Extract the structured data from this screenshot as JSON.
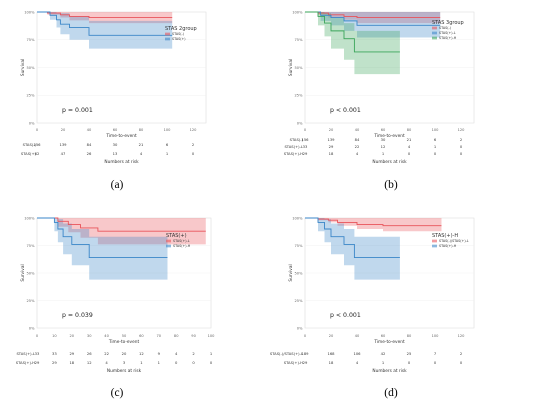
{
  "chart_data": [
    {
      "type": "line",
      "subtype": "kaplan-meier",
      "caption": "(a)",
      "p_value": "p = 0.001",
      "xlabel": "Time-to-event",
      "ylabel": "Survival",
      "risk_label": "Numbers at risk",
      "legend_title": "STAS 2group",
      "xlim": [
        0,
        130
      ],
      "ylim": [
        0,
        1
      ],
      "x_ticks": [
        0,
        20,
        40,
        60,
        80,
        100,
        120
      ],
      "y_ticks": [
        0,
        0.25,
        0.5,
        0.75,
        1
      ],
      "y_tick_labels": [
        "0%",
        "25%",
        "50%",
        "75%",
        "100%"
      ],
      "series": [
        {
          "name": "STAS(-)",
          "color": "#e8535a",
          "steps": [
            [
              0,
              1
            ],
            [
              8,
              0.99
            ],
            [
              18,
              0.975
            ],
            [
              25,
              0.96
            ],
            [
              40,
              0.95
            ],
            [
              104,
              0.95
            ]
          ],
          "ci_low": [
            [
              0,
              1
            ],
            [
              8,
              0.975
            ],
            [
              18,
              0.95
            ],
            [
              25,
              0.925
            ],
            [
              40,
              0.9
            ],
            [
              104,
              0.9
            ]
          ],
          "ci_high": [
            [
              0,
              1
            ],
            [
              104,
              1
            ]
          ]
        },
        {
          "name": "STAS(+)",
          "color": "#3a86c8",
          "steps": [
            [
              0,
              1
            ],
            [
              10,
              0.97
            ],
            [
              15,
              0.93
            ],
            [
              18,
              0.89
            ],
            [
              25,
              0.86
            ],
            [
              40,
              0.79
            ],
            [
              104,
              0.79
            ]
          ],
          "ci_low": [
            [
              0,
              1
            ],
            [
              10,
              0.93
            ],
            [
              15,
              0.86
            ],
            [
              18,
              0.8
            ],
            [
              25,
              0.75
            ],
            [
              40,
              0.67
            ],
            [
              104,
              0.67
            ]
          ],
          "ci_high": [
            [
              0,
              1
            ],
            [
              15,
              0.99
            ],
            [
              25,
              0.96
            ],
            [
              40,
              0.92
            ],
            [
              104,
              0.92
            ]
          ]
        }
      ],
      "risk_table": {
        "times": [
          0,
          20,
          40,
          60,
          80,
          100,
          120
        ],
        "rows": [
          {
            "label": "STAS(-)",
            "values": [
              "156",
              "139",
              "84",
              "30",
              "21",
              "6",
              "2"
            ]
          },
          {
            "label": "STAS(+)",
            "values": [
              "62",
              "47",
              "26",
              "13",
              "4",
              "1",
              "0"
            ]
          }
        ]
      }
    },
    {
      "type": "line",
      "subtype": "kaplan-meier",
      "caption": "(b)",
      "p_value": "p < 0.001",
      "xlabel": "Time-to-event",
      "ylabel": "Survival",
      "risk_label": "Numbers at risk",
      "legend_title": "STAS 3group",
      "xlim": [
        0,
        130
      ],
      "ylim": [
        0,
        1
      ],
      "x_ticks": [
        0,
        20,
        40,
        60,
        80,
        100,
        120
      ],
      "y_ticks": [
        0,
        0.25,
        0.5,
        0.75,
        1
      ],
      "y_tick_labels": [
        "0%",
        "25%",
        "50%",
        "75%",
        "100%"
      ],
      "series": [
        {
          "name": "STAS(-)",
          "color": "#e8535a",
          "steps": [
            [
              0,
              1
            ],
            [
              10,
              0.99
            ],
            [
              18,
              0.975
            ],
            [
              30,
              0.96
            ],
            [
              40,
              0.95
            ],
            [
              104,
              0.95
            ]
          ],
          "ci_low": [
            [
              0,
              1
            ],
            [
              10,
              0.975
            ],
            [
              18,
              0.95
            ],
            [
              30,
              0.93
            ],
            [
              40,
              0.9
            ],
            [
              104,
              0.9
            ]
          ],
          "ci_high": [
            [
              0,
              1
            ],
            [
              104,
              1
            ]
          ]
        },
        {
          "name": "STAS(+)-L",
          "color": "#3a86c8",
          "steps": [
            [
              0,
              1
            ],
            [
              12,
              0.97
            ],
            [
              20,
              0.95
            ],
            [
              30,
              0.92
            ],
            [
              40,
              0.88
            ],
            [
              104,
              0.88
            ]
          ],
          "ci_low": [
            [
              0,
              1
            ],
            [
              12,
              0.92
            ],
            [
              20,
              0.88
            ],
            [
              30,
              0.83
            ],
            [
              40,
              0.77
            ],
            [
              104,
              0.77
            ]
          ],
          "ci_high": [
            [
              0,
              1
            ],
            [
              104,
              1
            ]
          ]
        },
        {
          "name": "STAS(+)-H",
          "color": "#3aa55a",
          "steps": [
            [
              0,
              1
            ],
            [
              10,
              0.96
            ],
            [
              15,
              0.9
            ],
            [
              20,
              0.83
            ],
            [
              30,
              0.76
            ],
            [
              38,
              0.64
            ],
            [
              73,
              0.64
            ]
          ],
          "ci_low": [
            [
              0,
              1
            ],
            [
              10,
              0.88
            ],
            [
              15,
              0.78
            ],
            [
              20,
              0.67
            ],
            [
              30,
              0.57
            ],
            [
              38,
              0.44
            ],
            [
              73,
              0.44
            ]
          ],
          "ci_high": [
            [
              0,
              1
            ],
            [
              15,
              0.99
            ],
            [
              20,
              0.95
            ],
            [
              30,
              0.9
            ],
            [
              38,
              0.83
            ],
            [
              73,
              0.83
            ]
          ]
        }
      ],
      "risk_table": {
        "times": [
          0,
          20,
          40,
          60,
          80,
          100,
          120
        ],
        "rows": [
          {
            "label": "STAS(-)",
            "values": [
              "156",
              "139",
              "84",
              "30",
              "21",
              "6",
              "2"
            ]
          },
          {
            "label": "STAS(+)-L",
            "values": [
              "33",
              "29",
              "22",
              "12",
              "4",
              "1",
              "0"
            ]
          },
          {
            "label": "STAS(+)-H",
            "values": [
              "29",
              "18",
              "4",
              "1",
              "0",
              "0",
              "0"
            ]
          }
        ]
      }
    },
    {
      "type": "line",
      "subtype": "kaplan-meier",
      "caption": "(c)",
      "p_value": "p = 0.039",
      "xlabel": "Time-to-event",
      "ylabel": "Survival",
      "risk_label": "Numbers at risk",
      "legend_title": "STAS(+)",
      "xlim": [
        0,
        100
      ],
      "ylim": [
        0,
        1
      ],
      "x_ticks": [
        0,
        10,
        20,
        30,
        40,
        50,
        60,
        70,
        80,
        90,
        100
      ],
      "y_ticks": [
        0,
        0.25,
        0.5,
        0.75,
        1
      ],
      "y_tick_labels": [
        "0%",
        "25%",
        "50%",
        "75%",
        "100%"
      ],
      "series": [
        {
          "name": "STAS(+)-L",
          "color": "#e8535a",
          "steps": [
            [
              0,
              1
            ],
            [
              12,
              0.97
            ],
            [
              18,
              0.94
            ],
            [
              25,
              0.91
            ],
            [
              35,
              0.88
            ],
            [
              80,
              0.88
            ],
            [
              97,
              0.88
            ]
          ],
          "ci_low": [
            [
              0,
              1
            ],
            [
              12,
              0.92
            ],
            [
              18,
              0.87
            ],
            [
              25,
              0.82
            ],
            [
              35,
              0.76
            ],
            [
              97,
              0.76
            ]
          ],
          "ci_high": [
            [
              0,
              1
            ],
            [
              97,
              1
            ]
          ]
        },
        {
          "name": "STAS(+)-H",
          "color": "#3a86c8",
          "steps": [
            [
              0,
              1
            ],
            [
              10,
              0.96
            ],
            [
              12,
              0.9
            ],
            [
              15,
              0.83
            ],
            [
              20,
              0.76
            ],
            [
              30,
              0.64
            ],
            [
              75,
              0.64
            ]
          ],
          "ci_low": [
            [
              0,
              1
            ],
            [
              10,
              0.88
            ],
            [
              12,
              0.78
            ],
            [
              15,
              0.67
            ],
            [
              20,
              0.57
            ],
            [
              30,
              0.44
            ],
            [
              75,
              0.44
            ]
          ],
          "ci_high": [
            [
              0,
              1
            ],
            [
              12,
              0.99
            ],
            [
              15,
              0.95
            ],
            [
              20,
              0.9
            ],
            [
              30,
              0.83
            ],
            [
              75,
              0.83
            ]
          ]
        }
      ],
      "risk_table": {
        "times": [
          0,
          10,
          20,
          30,
          40,
          50,
          60,
          70,
          80,
          90,
          100
        ],
        "rows": [
          {
            "label": "STAS(+)-L",
            "values": [
              "33",
              "33",
              "29",
              "26",
              "22",
              "20",
              "12",
              "9",
              "4",
              "2",
              "1"
            ]
          },
          {
            "label": "STAS(+)-H",
            "values": [
              "29",
              "29",
              "18",
              "12",
              "4",
              "3",
              "1",
              "1",
              "0",
              "0",
              "0"
            ]
          }
        ]
      }
    },
    {
      "type": "line",
      "subtype": "kaplan-meier",
      "caption": "(d)",
      "p_value": "p < 0.001",
      "xlabel": "Time-to-event",
      "ylabel": "Survival",
      "risk_label": "Numbers at risk",
      "legend_title": "STAS(+)-H",
      "xlim": [
        0,
        130
      ],
      "ylim": [
        0,
        1
      ],
      "x_ticks": [
        0,
        20,
        40,
        60,
        80,
        100,
        120
      ],
      "y_ticks": [
        0,
        0.25,
        0.5,
        0.75,
        1
      ],
      "y_tick_labels": [
        "0%",
        "25%",
        "50%",
        "75%",
        "100%"
      ],
      "series": [
        {
          "name": "STAS(-)/STAS(+)-L",
          "color": "#e8535a",
          "steps": [
            [
              0,
              1
            ],
            [
              10,
              0.99
            ],
            [
              18,
              0.98
            ],
            [
              25,
              0.96
            ],
            [
              40,
              0.94
            ],
            [
              60,
              0.93
            ],
            [
              105,
              0.93
            ]
          ],
          "ci_low": [
            [
              0,
              1
            ],
            [
              10,
              0.98
            ],
            [
              18,
              0.96
            ],
            [
              25,
              0.93
            ],
            [
              40,
              0.9
            ],
            [
              60,
              0.88
            ],
            [
              105,
              0.88
            ]
          ],
          "ci_high": [
            [
              0,
              1
            ],
            [
              105,
              1
            ]
          ]
        },
        {
          "name": "STAS(+)-H",
          "color": "#3a86c8",
          "steps": [
            [
              0,
              1
            ],
            [
              10,
              0.96
            ],
            [
              15,
              0.9
            ],
            [
              20,
              0.83
            ],
            [
              30,
              0.76
            ],
            [
              38,
              0.64
            ],
            [
              73,
              0.64
            ]
          ],
          "ci_low": [
            [
              0,
              1
            ],
            [
              10,
              0.88
            ],
            [
              15,
              0.78
            ],
            [
              20,
              0.67
            ],
            [
              30,
              0.57
            ],
            [
              38,
              0.44
            ],
            [
              73,
              0.44
            ]
          ],
          "ci_high": [
            [
              0,
              1
            ],
            [
              15,
              0.99
            ],
            [
              20,
              0.95
            ],
            [
              30,
              0.9
            ],
            [
              38,
              0.83
            ],
            [
              73,
              0.83
            ]
          ]
        }
      ],
      "risk_table": {
        "times": [
          0,
          20,
          40,
          60,
          80,
          100,
          120
        ],
        "rows": [
          {
            "label": "STAS(-)/STAS(+)-L",
            "values": [
              "189",
              "168",
              "106",
              "42",
              "25",
              "7",
              "2"
            ]
          },
          {
            "label": "STAS(+)-H",
            "values": [
              "29",
              "18",
              "4",
              "1",
              "0",
              "0",
              "0"
            ]
          }
        ]
      }
    }
  ]
}
